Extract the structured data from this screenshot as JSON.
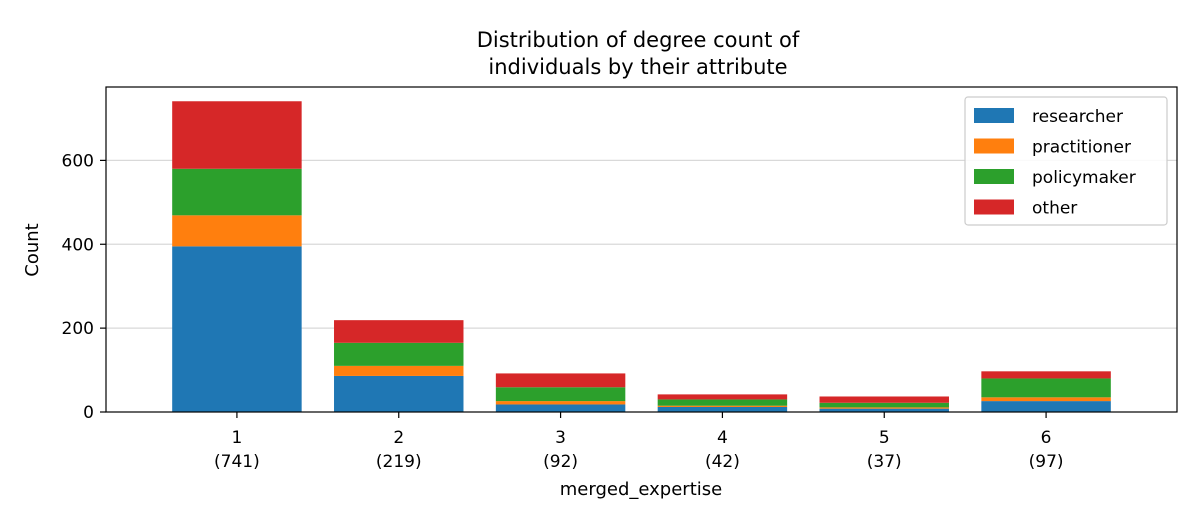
{
  "chart_data": {
    "type": "bar",
    "stacked": true,
    "title": "Distribution of degree count of\nindividuals by their attribute",
    "xlabel": "merged_expertise",
    "ylabel": "Count",
    "categories": [
      "1",
      "2",
      "3",
      "4",
      "5",
      "6"
    ],
    "category_counts": [
      "(741)",
      "(219)",
      "(92)",
      "(42)",
      "(37)",
      "(97)"
    ],
    "ylim": [
      0,
      775
    ],
    "yticks": [
      0,
      200,
      400,
      600
    ],
    "grid": "horizontal",
    "legend_position": "upper right",
    "series": [
      {
        "name": "researcher",
        "color": "#1f77b4",
        "values": [
          395,
          86,
          18,
          12,
          8,
          26
        ]
      },
      {
        "name": "practitioner",
        "color": "#ff7f0e",
        "values": [
          74,
          24,
          8,
          3,
          3,
          9
        ]
      },
      {
        "name": "policymaker",
        "color": "#2ca02c",
        "values": [
          111,
          55,
          33,
          15,
          11,
          45
        ]
      },
      {
        "name": "other",
        "color": "#d62728",
        "values": [
          161,
          54,
          33,
          12,
          15,
          17
        ]
      }
    ]
  }
}
